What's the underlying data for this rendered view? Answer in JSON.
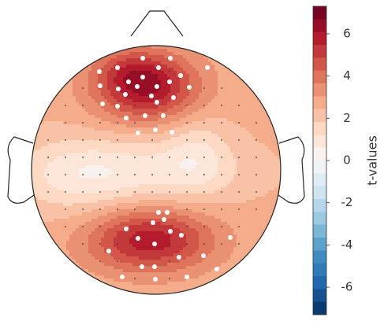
{
  "chart_data": {
    "type": "heatmap",
    "subtype": "eeg-topomap",
    "colormap": "diverging blue-white-red (RdBu_r)",
    "colorbar": {
      "label": "t-values",
      "range": [
        -7.3,
        7.3
      ],
      "ticks": [
        6,
        4,
        2,
        0,
        -2,
        -4,
        -6
      ],
      "tick_labels": [
        "6",
        "4",
        "2",
        "0",
        "-2",
        "-4",
        "-6"
      ],
      "levels": 24
    },
    "regions": [
      {
        "name": "frontal-left cluster",
        "peak_t": 6.0
      },
      {
        "name": "occipital cluster",
        "peak_t": 5.8
      },
      {
        "name": "central band",
        "min_t": 0.7
      },
      {
        "name": "background",
        "t": 2.6
      }
    ],
    "sensors": {
      "significant_marker": "white dot",
      "nonsignificant_marker": "small black dot"
    },
    "colors": {
      "head_outline": "#222222",
      "significant_sensor": "#ffffff",
      "other_sensor": "#333333"
    }
  }
}
